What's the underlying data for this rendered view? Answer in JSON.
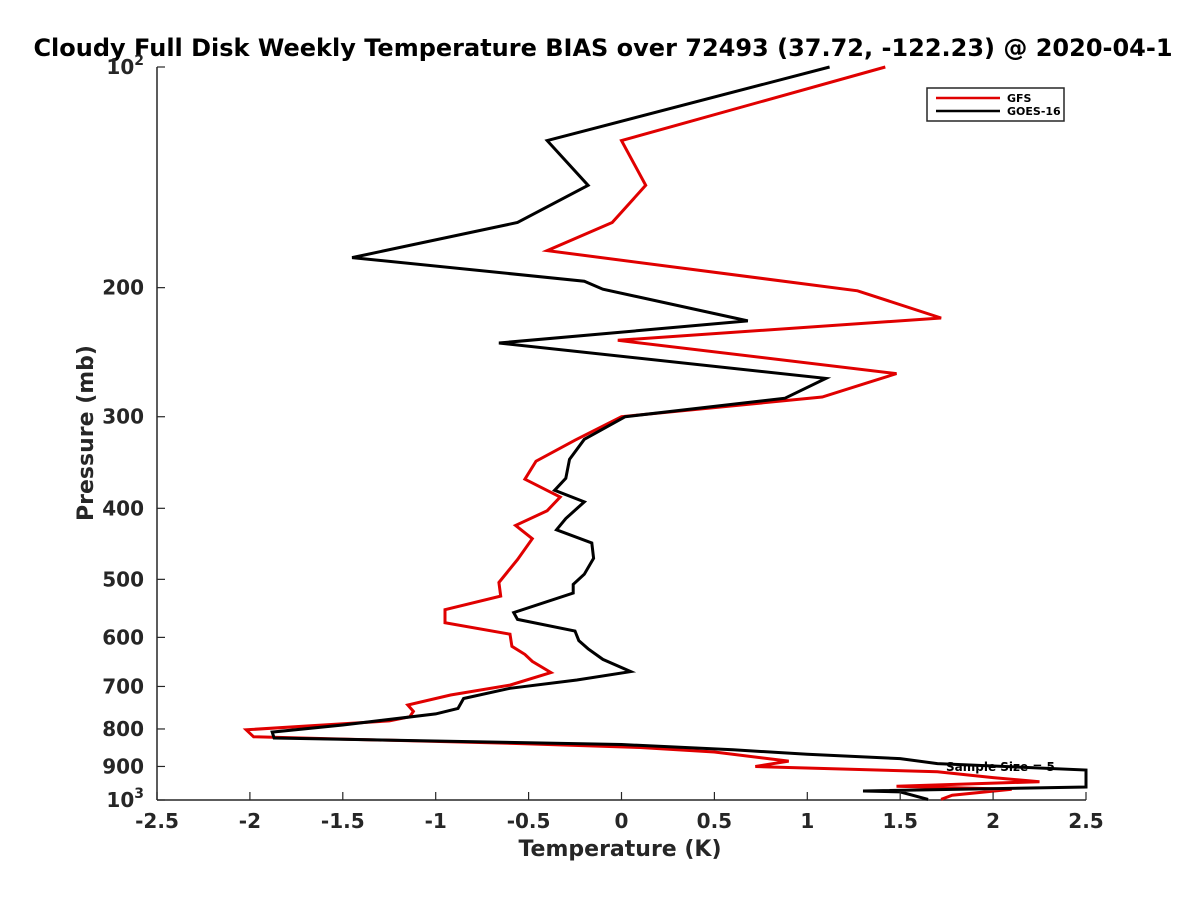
{
  "chart_data": {
    "type": "line",
    "title": "Cloudy Full Disk Weekly Temperature BIAS over 72493 (37.72, -122.23) @ 2020-04-1",
    "xlabel": "Temperature (K)",
    "ylabel": "Pressure (mb)",
    "xlim": [
      -2.5,
      2.5
    ],
    "ylim": [
      100,
      1000
    ],
    "y_scale": "log",
    "y_reversed": true,
    "grid": false,
    "legend_position": "top-right",
    "x_ticks": [
      "-2.5",
      "-2",
      "-1.5",
      "-1",
      "-0.5",
      "0",
      "0.5",
      "1",
      "1.5",
      "2",
      "2.5"
    ],
    "y_ticks": [
      {
        "value": 100,
        "base": "10",
        "exp": "2"
      },
      {
        "value": 200,
        "label": "200"
      },
      {
        "value": 300,
        "label": "300"
      },
      {
        "value": 400,
        "label": "400"
      },
      {
        "value": 500,
        "label": "500"
      },
      {
        "value": 600,
        "label": "600"
      },
      {
        "value": 700,
        "label": "700"
      },
      {
        "value": 800,
        "label": "800"
      },
      {
        "value": 900,
        "label": "900"
      },
      {
        "value": 1000,
        "base": "10",
        "exp": "3"
      }
    ],
    "annotation": "Sample Size = 5",
    "series": [
      {
        "name": "GFS",
        "color": "#e00000",
        "points": [
          [
            1.42,
            100
          ],
          [
            0.0,
            126
          ],
          [
            0.13,
            145
          ],
          [
            -0.05,
            163
          ],
          [
            -0.4,
            178
          ],
          [
            1.27,
            202
          ],
          [
            1.72,
            220
          ],
          [
            -0.02,
            236
          ],
          [
            1.48,
            262
          ],
          [
            1.08,
            282
          ],
          [
            0.0,
            300
          ],
          [
            -0.25,
            323
          ],
          [
            -0.46,
            345
          ],
          [
            -0.52,
            365
          ],
          [
            -0.33,
            386
          ],
          [
            -0.4,
            403
          ],
          [
            -0.57,
            422
          ],
          [
            -0.48,
            440
          ],
          [
            -0.56,
            470
          ],
          [
            -0.66,
            505
          ],
          [
            -0.65,
            527
          ],
          [
            -0.95,
            550
          ],
          [
            -0.95,
            573
          ],
          [
            -0.6,
            594
          ],
          [
            -0.59,
            617
          ],
          [
            -0.52,
            633
          ],
          [
            -0.48,
            647
          ],
          [
            -0.38,
            670
          ],
          [
            -0.6,
            697
          ],
          [
            -0.92,
            719
          ],
          [
            -1.15,
            742
          ],
          [
            -1.12,
            757
          ],
          [
            -1.14,
            770
          ],
          [
            -1.25,
            780
          ],
          [
            -2.02,
            802
          ],
          [
            -1.98,
            820
          ],
          [
            -0.52,
            838
          ],
          [
            0.1,
            848
          ],
          [
            0.5,
            860
          ],
          [
            0.9,
            885
          ],
          [
            0.72,
            900
          ],
          [
            1.7,
            915
          ],
          [
            2.0,
            932
          ],
          [
            2.25,
            944
          ],
          [
            1.48,
            958
          ],
          [
            2.1,
            967
          ],
          [
            1.78,
            985
          ],
          [
            1.72,
            998
          ]
        ]
      },
      {
        "name": "GOES-16",
        "color": "#000000",
        "points": [
          [
            1.12,
            100
          ],
          [
            -0.4,
            126
          ],
          [
            -0.18,
            145
          ],
          [
            -0.56,
            163
          ],
          [
            -1.45,
            182
          ],
          [
            -0.2,
            196
          ],
          [
            -0.1,
            201
          ],
          [
            0.68,
            222
          ],
          [
            -0.66,
            238
          ],
          [
            1.1,
            266
          ],
          [
            0.88,
            283
          ],
          [
            0.02,
            300
          ],
          [
            -0.2,
            322
          ],
          [
            -0.28,
            343
          ],
          [
            -0.3,
            364
          ],
          [
            -0.36,
            378
          ],
          [
            -0.2,
            392
          ],
          [
            -0.3,
            413
          ],
          [
            -0.35,
            428
          ],
          [
            -0.16,
            446
          ],
          [
            -0.15,
            468
          ],
          [
            -0.2,
            492
          ],
          [
            -0.26,
            508
          ],
          [
            -0.26,
            522
          ],
          [
            -0.58,
            555
          ],
          [
            -0.56,
            567
          ],
          [
            -0.25,
            588
          ],
          [
            -0.23,
            606
          ],
          [
            -0.18,
            622
          ],
          [
            -0.1,
            643
          ],
          [
            0.05,
            668
          ],
          [
            -0.24,
            686
          ],
          [
            -0.6,
            704
          ],
          [
            -0.85,
            727
          ],
          [
            -0.88,
            750
          ],
          [
            -1.0,
            763
          ],
          [
            -1.5,
            790
          ],
          [
            -1.88,
            808
          ],
          [
            -1.87,
            823
          ],
          [
            0.0,
            840
          ],
          [
            0.6,
            854
          ],
          [
            1.0,
            866
          ],
          [
            1.5,
            878
          ],
          [
            1.7,
            892
          ],
          [
            2.5,
            910
          ],
          [
            2.5,
            960
          ],
          [
            1.3,
            972
          ],
          [
            1.5,
            975
          ],
          [
            1.65,
            998
          ]
        ]
      }
    ]
  }
}
